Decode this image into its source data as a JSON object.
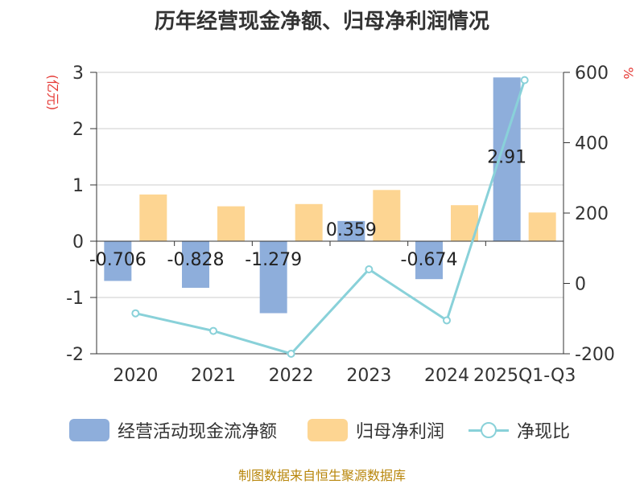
{
  "chart_data": {
    "type": "bar",
    "title": "历年经营现金净额、归母净利润情况",
    "categories": [
      "2020",
      "2021",
      "2022",
      "2023",
      "2024",
      "2025Q1-Q3"
    ],
    "y_left": {
      "label": "(亿元)",
      "ylim": [
        -2,
        3
      ],
      "ticks": [
        "3",
        "2",
        "1",
        "0",
        "-1",
        "-2"
      ]
    },
    "y_right": {
      "label": "%",
      "ylim": [
        -200,
        600
      ],
      "ticks": [
        "600",
        "400",
        "200",
        "0",
        "-200"
      ]
    },
    "series": [
      {
        "name": "经营活动现金流净额",
        "kind": "bar",
        "axis": "left",
        "color": "#8eaedb",
        "values": [
          -0.706,
          -0.828,
          -1.279,
          0.359,
          -0.674,
          2.91
        ],
        "labels": [
          "-0.706",
          "-0.828",
          "-1.279",
          "0.359",
          "-0.674",
          "2.91"
        ]
      },
      {
        "name": "归母净利润",
        "kind": "bar",
        "axis": "left",
        "color": "#fdd592",
        "values": [
          0.83,
          0.62,
          0.66,
          0.91,
          0.64,
          0.51
        ]
      },
      {
        "name": "净现比",
        "kind": "line",
        "axis": "right",
        "color": "#89d1d9",
        "values": [
          -85,
          -135,
          -200,
          40,
          -105,
          578
        ]
      }
    ],
    "grid": true,
    "legend_position": "bottom"
  },
  "source": "制图数据来自恒生聚源数据库"
}
